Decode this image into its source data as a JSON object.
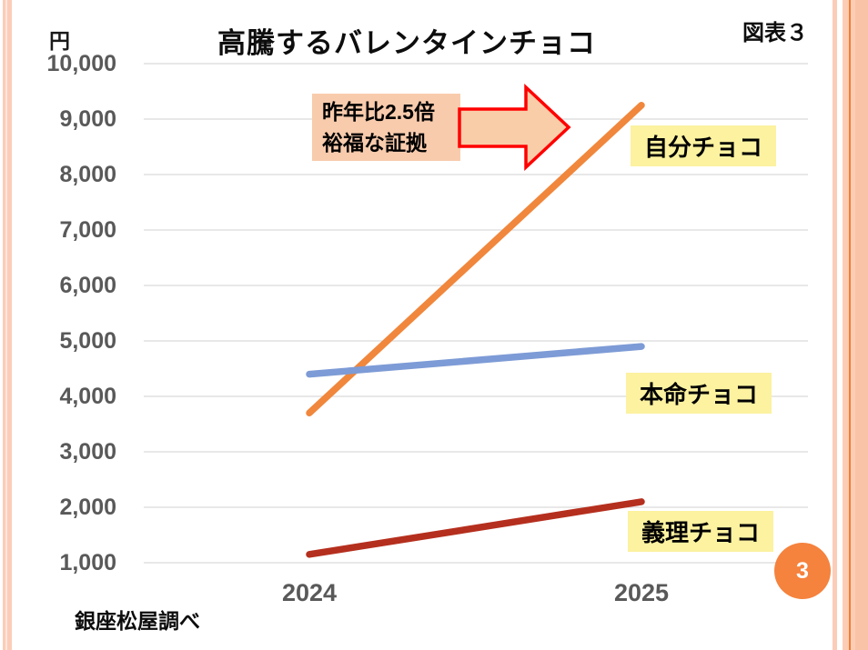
{
  "slide": {
    "title": "高騰するバレンタインチョコ",
    "figure_label": "図表３",
    "unit_label": "円",
    "source_note": "銀座松屋調べ",
    "page_number": "3"
  },
  "annotation": {
    "line1": "昨年比2.5倍",
    "line2": "裕福な証拠"
  },
  "chart_data": {
    "type": "line",
    "x": [
      "2024",
      "2025"
    ],
    "series": [
      {
        "name": "自分チョコ",
        "values": [
          3700,
          9250
        ],
        "color": "#F0873C"
      },
      {
        "name": "本命チョコ",
        "values": [
          4400,
          4900
        ],
        "color": "#7D9BD6"
      },
      {
        "name": "義理チョコ",
        "values": [
          1150,
          2100
        ],
        "color": "#B52F1E"
      }
    ],
    "title": "高騰するバレンタインチョコ",
    "xlabel": "",
    "ylabel": "円",
    "ylim": [
      1000,
      10000
    ],
    "ytick_step": 1000,
    "grid": true,
    "legend_position": "labels-right-of-lines"
  },
  "colors": {
    "label_bg": "#FCF2A0",
    "annotation_bg": "#F8CBAD",
    "arrow_fill": "#FACDA9",
    "arrow_stroke": "#FF0000",
    "axis_text": "#595959",
    "gridline": "#D9D9D9",
    "page_badge": "#F5823D",
    "border_peach": "#FBCDB8",
    "border_orange": "#F07E36"
  }
}
